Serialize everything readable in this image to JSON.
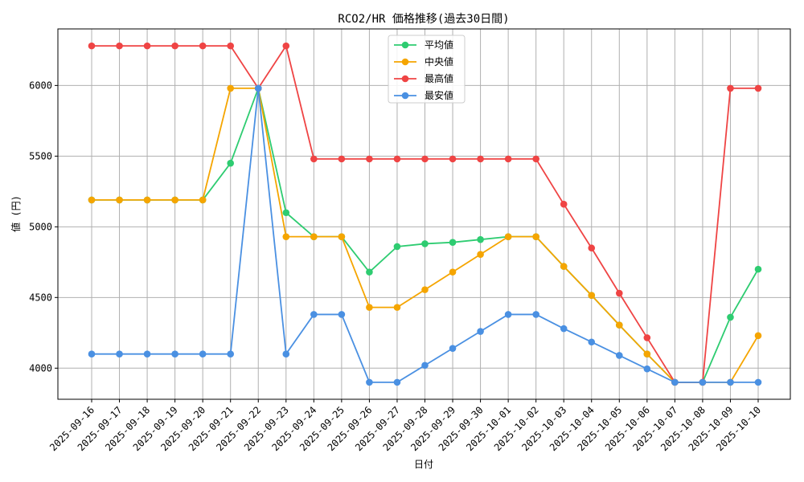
{
  "chart_data": {
    "type": "line",
    "title": "RCO2/HR 価格推移(過去30日間)",
    "xlabel": "日付",
    "ylabel": "値 (円)",
    "ylim": [
      3780,
      6400
    ],
    "yticks": [
      4000,
      4500,
      5000,
      5500,
      6000
    ],
    "grid": true,
    "legend_position": "top-center",
    "categories": [
      "2025-09-16",
      "2025-09-17",
      "2025-09-18",
      "2025-09-19",
      "2025-09-20",
      "2025-09-21",
      "2025-09-22",
      "2025-09-23",
      "2025-09-24",
      "2025-09-25",
      "2025-09-26",
      "2025-09-27",
      "2025-09-28",
      "2025-09-29",
      "2025-09-30",
      "2025-10-01",
      "2025-10-02",
      "2025-10-03",
      "2025-10-04",
      "2025-10-05",
      "2025-10-06",
      "2025-10-07",
      "2025-10-08",
      "2025-10-09",
      "2025-10-10"
    ],
    "series": [
      {
        "name": "平均値",
        "color": "#2ecc71",
        "values": [
          5190,
          5190,
          5190,
          5190,
          5190,
          5450,
          5980,
          5100,
          4930,
          4930,
          4680,
          4860,
          4880,
          4890,
          4910,
          4930,
          4930,
          4720,
          4515,
          4305,
          4100,
          3900,
          3900,
          4360,
          4700
        ]
      },
      {
        "name": "中央値",
        "color": "#f5a500",
        "values": [
          5190,
          5190,
          5190,
          5190,
          5190,
          5980,
          5980,
          4930,
          4930,
          4930,
          4430,
          4430,
          4555,
          4680,
          4805,
          4930,
          4930,
          4720,
          4515,
          4305,
          4100,
          3900,
          3900,
          3900,
          4230
        ]
      },
      {
        "name": "最高値",
        "color": "#ef4444",
        "values": [
          6280,
          6280,
          6280,
          6280,
          6280,
          6280,
          5980,
          6280,
          5480,
          5480,
          5480,
          5480,
          5480,
          5480,
          5480,
          5480,
          5480,
          5160,
          4850,
          4530,
          4215,
          3900,
          3900,
          5980,
          5980
        ]
      },
      {
        "name": "最安値",
        "color": "#4a90e2",
        "values": [
          4100,
          4100,
          4100,
          4100,
          4100,
          4100,
          5980,
          4100,
          4380,
          4380,
          3900,
          3900,
          4020,
          4140,
          4260,
          4380,
          4380,
          4280,
          4185,
          4090,
          3995,
          3900,
          3900,
          3900,
          3900
        ]
      }
    ]
  }
}
